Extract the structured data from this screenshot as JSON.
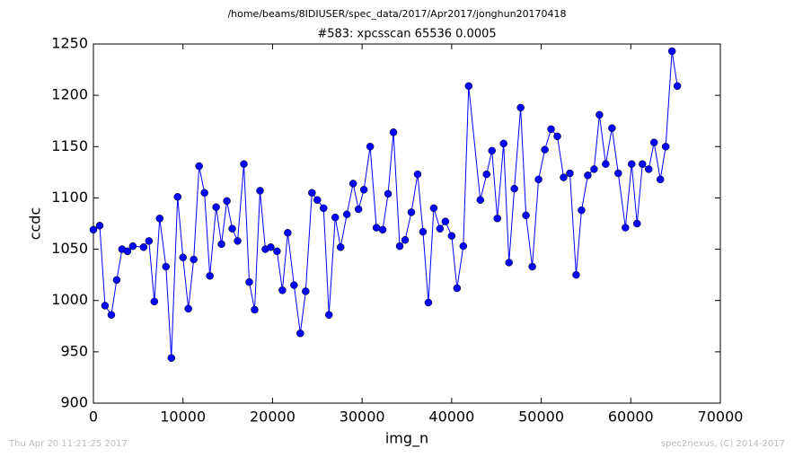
{
  "chart_data": {
    "type": "line",
    "suptitle": "/home/beams/8IDIUSER/spec_data/2017/Apr2017/jonghun20170418",
    "title": "#583: xpcsscan 65536 0.0005",
    "xlabel": "img_n",
    "ylabel": "ccdc",
    "footer_left": "Thu Apr 20 11:21:25 2017",
    "footer_right": "spec2nexus, (C) 2014-2017",
    "x": [
      0,
      700,
      1300,
      2000,
      2600,
      3200,
      3800,
      4400,
      5600,
      6200,
      6800,
      7400,
      8100,
      8700,
      9400,
      10000,
      10600,
      11200,
      11800,
      12400,
      13000,
      13700,
      14300,
      14900,
      15500,
      16100,
      16800,
      17400,
      18000,
      18600,
      19200,
      19800,
      20500,
      21100,
      21700,
      22400,
      23100,
      23700,
      24400,
      25000,
      25700,
      26300,
      27000,
      27600,
      28300,
      29000,
      29600,
      30200,
      30900,
      31600,
      32300,
      32900,
      33500,
      34200,
      34800,
      35500,
      36200,
      36800,
      37400,
      38000,
      38700,
      39300,
      40000,
      40600,
      41300,
      41900,
      43200,
      43900,
      44500,
      45100,
      45800,
      46400,
      47000,
      47700,
      48300,
      49000,
      49700,
      50400,
      51100,
      51800,
      52500,
      53200,
      53900,
      54500,
      55200,
      55900,
      56500,
      57200,
      57900,
      58600,
      59400,
      60100,
      60700,
      61300,
      62000,
      62600,
      63300,
      63900,
      64600,
      65200
    ],
    "series": [
      {
        "name": "ccdc",
        "color": "#0000ff",
        "values": [
          1069,
          1073,
          995,
          986,
          1020,
          1050,
          1048,
          1053,
          1052,
          1058,
          999,
          1080,
          1033,
          944,
          1101,
          1042,
          992,
          1040,
          1131,
          1105,
          1024,
          1091,
          1055,
          1097,
          1070,
          1058,
          1133,
          1018,
          991,
          1107,
          1050,
          1052,
          1048,
          1010,
          1066,
          1015,
          968,
          1009,
          1105,
          1098,
          1090,
          986,
          1081,
          1052,
          1084,
          1114,
          1089,
          1108,
          1150,
          1071,
          1069,
          1104,
          1164,
          1053,
          1059,
          1086,
          1123,
          1067,
          998,
          1090,
          1070,
          1077,
          1063,
          1012,
          1053,
          1209,
          1098,
          1123,
          1146,
          1080,
          1153,
          1037,
          1109,
          1188,
          1083,
          1033,
          1118,
          1147,
          1167,
          1160,
          1120,
          1124,
          1025,
          1088,
          1122,
          1128,
          1181,
          1133,
          1168,
          1124,
          1071,
          1133,
          1075,
          1133,
          1128,
          1154,
          1118,
          1150,
          1243,
          1209
        ]
      }
    ],
    "xlim": [
      0,
      70000
    ],
    "xticks": [
      0,
      10000,
      20000,
      30000,
      40000,
      50000,
      60000,
      70000
    ],
    "ylim": [
      900,
      1250
    ],
    "yticks": [
      900,
      950,
      1000,
      1050,
      1100,
      1150,
      1200,
      1250
    ]
  }
}
